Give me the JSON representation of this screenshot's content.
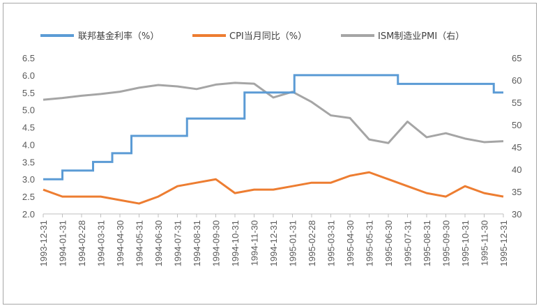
{
  "chart_data": {
    "type": "line",
    "title": "",
    "xlabel": "",
    "ylabel": "",
    "y2label": "",
    "ylim": [
      2.0,
      6.5
    ],
    "y2lim": [
      30,
      65
    ],
    "yticks": [
      "2.0",
      "2.5",
      "3.0",
      "3.5",
      "4.0",
      "4.5",
      "5.0",
      "5.5",
      "6.0",
      "6.5"
    ],
    "y2ticks": [
      "30",
      "35",
      "40",
      "45",
      "50",
      "55",
      "60",
      "65"
    ],
    "categories": [
      "1993-12-31",
      "1994-01-31",
      "1994-02-28",
      "1994-03-31",
      "1994-04-30",
      "1994-05-31",
      "1994-06-30",
      "1994-07-31",
      "1994-08-31",
      "1994-09-30",
      "1994-10-31",
      "1994-11-30",
      "1994-12-31",
      "1995-01-31",
      "1995-02-28",
      "1995-03-31",
      "1995-04-30",
      "1995-05-31",
      "1995-06-30",
      "1995-07-31",
      "1995-08-31",
      "1995-09-30",
      "1995-10-31",
      "1995-11-30",
      "1995-12-31"
    ],
    "legend_position": "top",
    "series": [
      {
        "name": "联邦基金利率（%）",
        "axis": "left",
        "color": "#5b9bd5",
        "style": "step",
        "steps": [
          {
            "from": 0,
            "to": 1,
            "value": 3.0
          },
          {
            "from": 1,
            "to": 2.6,
            "value": 3.25
          },
          {
            "from": 2.6,
            "to": 3.6,
            "value": 3.5
          },
          {
            "from": 3.6,
            "to": 4.6,
            "value": 3.75
          },
          {
            "from": 4.6,
            "to": 7.5,
            "value": 4.25
          },
          {
            "from": 7.5,
            "to": 10.5,
            "value": 4.75
          },
          {
            "from": 10.5,
            "to": 13.1,
            "value": 5.5
          },
          {
            "from": 13.1,
            "to": 18.5,
            "value": 6.0
          },
          {
            "from": 18.5,
            "to": 23.5,
            "value": 5.75
          },
          {
            "from": 23.5,
            "to": 24,
            "value": 5.5
          }
        ]
      },
      {
        "name": "CPI当月同比（%）",
        "axis": "left",
        "color": "#ed7d31",
        "values": [
          2.7,
          2.5,
          2.5,
          2.5,
          2.4,
          2.3,
          2.5,
          2.8,
          2.9,
          3.0,
          2.6,
          2.7,
          2.7,
          2.8,
          2.9,
          2.9,
          3.1,
          3.2,
          3.0,
          2.8,
          2.6,
          2.5,
          2.8,
          2.6,
          2.5
        ]
      },
      {
        "name": "ISM制造业PMI（右）",
        "axis": "right",
        "color": "#a5a5a5",
        "values": [
          55.6,
          56.0,
          56.5,
          56.9,
          57.4,
          58.3,
          58.9,
          58.6,
          58.0,
          59.0,
          59.4,
          59.2,
          56.1,
          57.4,
          55.1,
          52.1,
          51.5,
          46.7,
          45.9,
          50.7,
          47.2,
          48.1,
          46.9,
          46.1,
          46.3
        ]
      }
    ]
  }
}
